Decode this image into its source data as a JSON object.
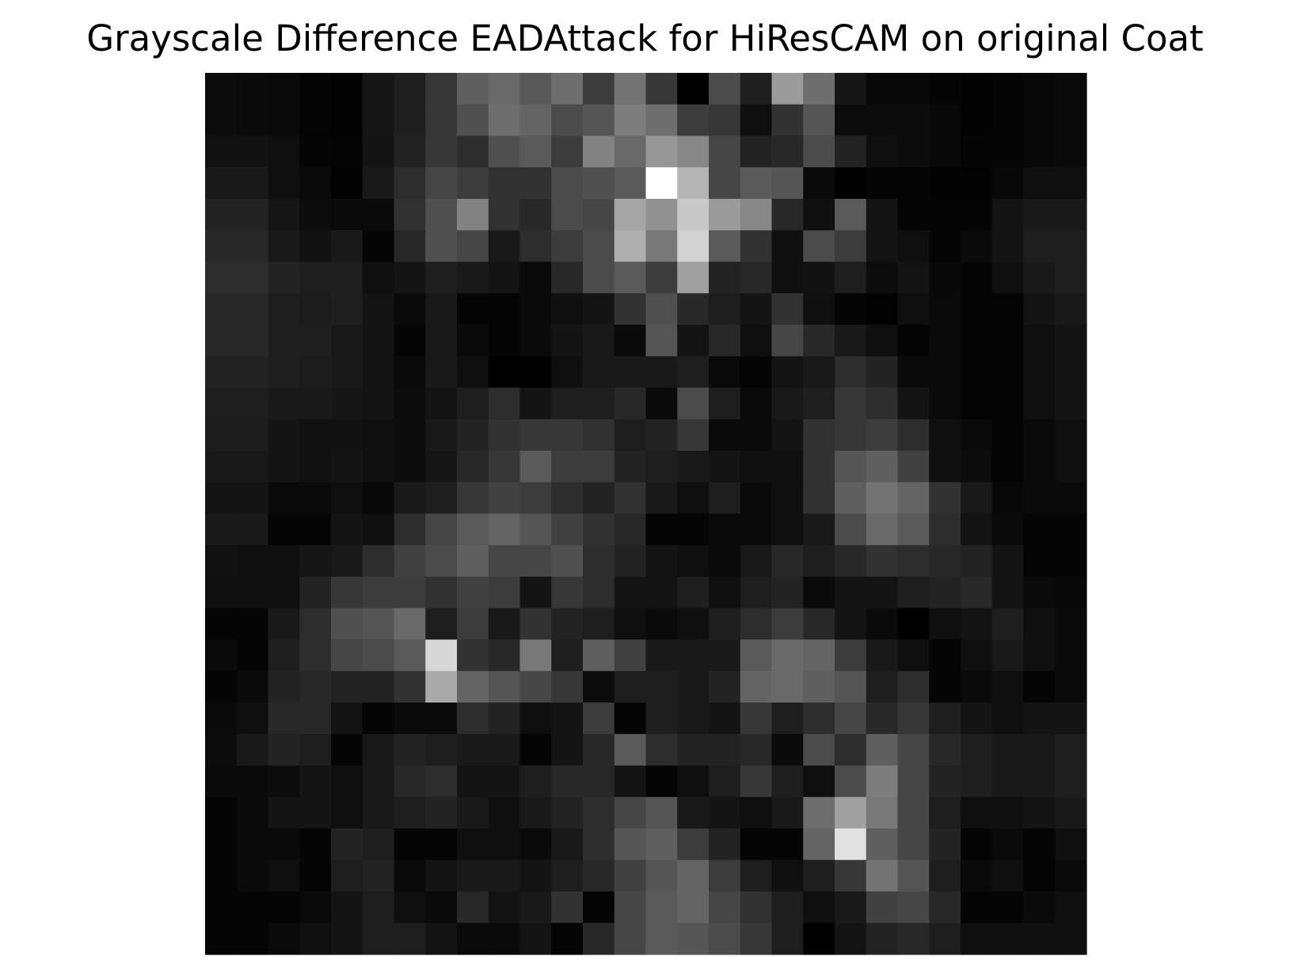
{
  "chart_data": {
    "type": "heatmap",
    "title": "Grayscale Difference EADAttack for HiResCAM on original Coat",
    "xlabel": "",
    "ylabel": "",
    "axes_visible": false,
    "colormap": "gray",
    "vmin": 0,
    "vmax": 255,
    "rows": 28,
    "cols": 28,
    "values": [
      [
        12,
        10,
        9,
        4,
        2,
        22,
        30,
        55,
        95,
        105,
        88,
        110,
        60,
        115,
        55,
        0,
        75,
        30,
        155,
        110,
        22,
        8,
        8,
        5,
        3,
        5,
        8,
        10
      ],
      [
        12,
        10,
        9,
        4,
        2,
        22,
        30,
        55,
        80,
        110,
        100,
        75,
        85,
        125,
        110,
        60,
        55,
        15,
        50,
        85,
        12,
        12,
        12,
        8,
        3,
        5,
        8,
        10
      ],
      [
        18,
        18,
        15,
        5,
        4,
        20,
        35,
        55,
        45,
        80,
        90,
        60,
        130,
        105,
        150,
        135,
        70,
        35,
        40,
        75,
        35,
        15,
        12,
        8,
        4,
        5,
        8,
        10
      ],
      [
        25,
        25,
        15,
        10,
        2,
        25,
        45,
        70,
        60,
        50,
        50,
        75,
        80,
        90,
        255,
        180,
        70,
        90,
        85,
        10,
        0,
        5,
        5,
        3,
        3,
        8,
        15,
        15
      ],
      [
        35,
        35,
        22,
        12,
        10,
        10,
        50,
        80,
        130,
        50,
        40,
        75,
        70,
        165,
        145,
        200,
        155,
        135,
        40,
        15,
        90,
        20,
        5,
        5,
        5,
        20,
        25,
        25
      ],
      [
        40,
        40,
        25,
        18,
        25,
        5,
        40,
        80,
        70,
        25,
        45,
        60,
        75,
        175,
        120,
        210,
        90,
        50,
        15,
        75,
        60,
        20,
        15,
        5,
        10,
        20,
        30,
        30
      ],
      [
        45,
        45,
        35,
        30,
        30,
        15,
        20,
        30,
        25,
        20,
        10,
        40,
        75,
        90,
        60,
        160,
        35,
        40,
        15,
        18,
        30,
        12,
        20,
        8,
        5,
        15,
        25,
        30
      ],
      [
        40,
        40,
        30,
        28,
        30,
        20,
        10,
        25,
        5,
        5,
        10,
        15,
        20,
        50,
        80,
        40,
        30,
        20,
        50,
        15,
        5,
        2,
        15,
        10,
        5,
        5,
        20,
        25
      ],
      [
        40,
        40,
        30,
        30,
        25,
        20,
        5,
        25,
        10,
        5,
        10,
        20,
        25,
        10,
        85,
        20,
        40,
        15,
        70,
        40,
        25,
        15,
        5,
        10,
        5,
        5,
        15,
        20
      ],
      [
        35,
        35,
        30,
        28,
        25,
        20,
        10,
        25,
        15,
        0,
        0,
        15,
        25,
        25,
        25,
        30,
        10,
        5,
        20,
        25,
        45,
        35,
        10,
        10,
        5,
        5,
        15,
        20
      ],
      [
        30,
        30,
        25,
        25,
        22,
        20,
        12,
        20,
        30,
        45,
        20,
        30,
        30,
        40,
        10,
        75,
        30,
        10,
        25,
        30,
        55,
        45,
        20,
        10,
        5,
        5,
        15,
        20
      ],
      [
        28,
        28,
        20,
        18,
        18,
        15,
        12,
        25,
        35,
        50,
        55,
        55,
        50,
        30,
        35,
        55,
        10,
        10,
        20,
        50,
        55,
        60,
        45,
        15,
        10,
        5,
        10,
        15
      ],
      [
        25,
        25,
        20,
        18,
        20,
        15,
        12,
        22,
        40,
        55,
        90,
        60,
        60,
        35,
        30,
        25,
        20,
        15,
        15,
        50,
        85,
        95,
        65,
        15,
        12,
        5,
        10,
        15
      ],
      [
        20,
        20,
        10,
        10,
        15,
        8,
        25,
        30,
        55,
        65,
        60,
        45,
        35,
        50,
        25,
        15,
        30,
        10,
        15,
        50,
        95,
        115,
        100,
        50,
        25,
        8,
        10,
        10
      ],
      [
        25,
        25,
        5,
        5,
        20,
        15,
        45,
        70,
        90,
        100,
        85,
        65,
        50,
        40,
        5,
        5,
        10,
        10,
        15,
        25,
        75,
        105,
        90,
        45,
        20,
        10,
        5,
        5
      ],
      [
        18,
        15,
        15,
        22,
        25,
        45,
        65,
        75,
        95,
        70,
        70,
        80,
        45,
        35,
        20,
        15,
        10,
        25,
        40,
        30,
        40,
        50,
        45,
        40,
        35,
        20,
        5,
        5
      ],
      [
        15,
        15,
        15,
        35,
        55,
        60,
        60,
        50,
        65,
        60,
        20,
        55,
        45,
        20,
        20,
        30,
        15,
        30,
        35,
        10,
        20,
        20,
        30,
        35,
        40,
        20,
        10,
        8
      ],
      [
        5,
        5,
        25,
        45,
        80,
        85,
        105,
        30,
        60,
        25,
        50,
        35,
        30,
        15,
        10,
        15,
        30,
        45,
        60,
        40,
        20,
        10,
        0,
        15,
        20,
        30,
        15,
        10
      ],
      [
        10,
        5,
        30,
        45,
        70,
        75,
        90,
        215,
        50,
        40,
        120,
        30,
        95,
        65,
        25,
        25,
        25,
        90,
        105,
        100,
        60,
        25,
        15,
        5,
        15,
        25,
        15,
        10
      ],
      [
        5,
        10,
        35,
        40,
        35,
        35,
        50,
        170,
        100,
        85,
        70,
        55,
        12,
        30,
        30,
        25,
        35,
        100,
        105,
        95,
        85,
        30,
        45,
        5,
        10,
        15,
        5,
        10
      ],
      [
        10,
        15,
        40,
        40,
        20,
        5,
        10,
        10,
        45,
        35,
        15,
        20,
        60,
        5,
        30,
        25,
        20,
        55,
        30,
        45,
        70,
        40,
        55,
        30,
        20,
        15,
        20,
        20
      ],
      [
        12,
        25,
        35,
        30,
        5,
        25,
        35,
        30,
        25,
        25,
        5,
        20,
        40,
        90,
        45,
        35,
        35,
        40,
        10,
        75,
        45,
        95,
        70,
        40,
        30,
        25,
        25,
        30
      ],
      [
        10,
        10,
        12,
        20,
        15,
        25,
        40,
        45,
        20,
        20,
        30,
        40,
        40,
        20,
        5,
        15,
        30,
        55,
        30,
        15,
        75,
        125,
        70,
        35,
        30,
        25,
        25,
        30
      ],
      [
        5,
        10,
        20,
        20,
        15,
        25,
        30,
        35,
        25,
        15,
        25,
        35,
        45,
        70,
        85,
        25,
        20,
        15,
        25,
        110,
        160,
        120,
        70,
        30,
        15,
        15,
        20,
        25
      ],
      [
        5,
        10,
        10,
        5,
        35,
        30,
        5,
        5,
        15,
        15,
        10,
        25,
        45,
        85,
        95,
        60,
        35,
        5,
        5,
        100,
        225,
        95,
        70,
        35,
        5,
        10,
        5,
        15
      ],
      [
        5,
        10,
        15,
        5,
        30,
        35,
        10,
        20,
        25,
        25,
        20,
        30,
        40,
        65,
        85,
        100,
        60,
        30,
        15,
        30,
        55,
        115,
        85,
        30,
        10,
        15,
        5,
        10
      ],
      [
        5,
        5,
        5,
        10,
        20,
        30,
        15,
        10,
        40,
        20,
        25,
        50,
        5,
        70,
        90,
        100,
        70,
        50,
        30,
        15,
        25,
        65,
        70,
        40,
        5,
        5,
        10,
        15
      ],
      [
        5,
        5,
        10,
        15,
        20,
        30,
        30,
        20,
        10,
        10,
        20,
        5,
        40,
        70,
        90,
        85,
        75,
        55,
        30,
        0,
        20,
        35,
        40,
        30,
        15,
        15,
        15,
        15
      ]
    ]
  }
}
